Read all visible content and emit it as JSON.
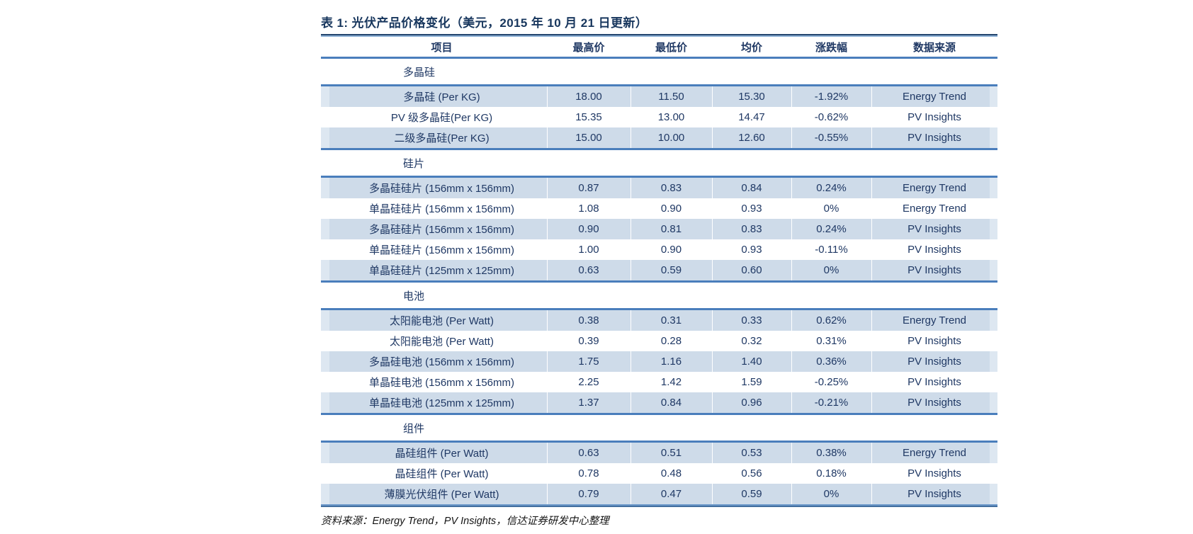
{
  "title": "表 1:  光伏产品价格变化（美元，2015 年 10 月 21 日更新）",
  "footer": "资料来源：Energy Trend，PV Insights，信达证券研发中心整理",
  "colors": {
    "text_navy": "#1f3864",
    "title_navy": "#17365d",
    "rule_blue": "#4a7ebc",
    "row_shade": "#cedbe9",
    "row_shade_cap": "#dde7f1"
  },
  "table": {
    "columns": [
      {
        "key": "item",
        "label": "项目"
      },
      {
        "key": "high",
        "label": "最高价"
      },
      {
        "key": "low",
        "label": "最低价"
      },
      {
        "key": "avg",
        "label": "均价"
      },
      {
        "key": "change",
        "label": "涨跌幅"
      },
      {
        "key": "source",
        "label": "数据来源"
      }
    ],
    "sections": [
      {
        "id": "polysilicon",
        "name": "多晶硅",
        "rows": [
          {
            "item": "多晶硅 (Per KG)",
            "high": "18.00",
            "low": "11.50",
            "avg": "15.30",
            "change": "-1.92%",
            "source": "Energy Trend"
          },
          {
            "item": "PV 级多晶硅(Per KG)",
            "high": "15.35",
            "low": "13.00",
            "avg": "14.47",
            "change": "-0.62%",
            "source": "PV Insights"
          },
          {
            "item": "二级多晶硅(Per KG)",
            "high": "15.00",
            "low": "10.00",
            "avg": "12.60",
            "change": "-0.55%",
            "source": "PV Insights"
          }
        ]
      },
      {
        "id": "wafer",
        "name": "硅片",
        "rows": [
          {
            "item": "多晶硅硅片 (156mm x 156mm)",
            "high": "0.87",
            "low": "0.83",
            "avg": "0.84",
            "change": "0.24%",
            "source": "Energy Trend"
          },
          {
            "item": "单晶硅硅片 (156mm x 156mm)",
            "high": "1.08",
            "low": "0.90",
            "avg": "0.93",
            "change": "0%",
            "source": "Energy Trend"
          },
          {
            "item": "多晶硅硅片 (156mm x 156mm)",
            "high": "0.90",
            "low": "0.81",
            "avg": "0.83",
            "change": "0.24%",
            "source": "PV Insights"
          },
          {
            "item": "单晶硅硅片 (156mm x 156mm)",
            "high": "1.00",
            "low": "0.90",
            "avg": "0.93",
            "change": "-0.11%",
            "source": "PV Insights"
          },
          {
            "item": "单晶硅硅片 (125mm x 125mm)",
            "high": "0.63",
            "low": "0.59",
            "avg": "0.60",
            "change": "0%",
            "source": "PV Insights"
          }
        ]
      },
      {
        "id": "cell",
        "name": "电池",
        "rows": [
          {
            "item": "太阳能电池 (Per Watt)",
            "high": "0.38",
            "low": "0.31",
            "avg": "0.33",
            "change": "0.62%",
            "source": "Energy Trend"
          },
          {
            "item": "太阳能电池 (Per Watt)",
            "high": "0.39",
            "low": "0.28",
            "avg": "0.32",
            "change": "0.31%",
            "source": "PV Insights"
          },
          {
            "item": "多晶硅电池 (156mm x 156mm)",
            "high": "1.75",
            "low": "1.16",
            "avg": "1.40",
            "change": "0.36%",
            "source": "PV Insights"
          },
          {
            "item": "单晶硅电池 (156mm x 156mm)",
            "high": "2.25",
            "low": "1.42",
            "avg": "1.59",
            "change": "-0.25%",
            "source": "PV Insights"
          },
          {
            "item": "单晶硅电池 (125mm x 125mm)",
            "high": "1.37",
            "low": "0.84",
            "avg": "0.96",
            "change": "-0.21%",
            "source": "PV Insights"
          }
        ]
      },
      {
        "id": "module",
        "name": "组件",
        "rows": [
          {
            "item": "晶硅组件 (Per Watt)",
            "high": "0.63",
            "low": "0.51",
            "avg": "0.53",
            "change": "0.38%",
            "source": "Energy Trend"
          },
          {
            "item": "晶硅组件 (Per Watt)",
            "high": "0.78",
            "low": "0.48",
            "avg": "0.56",
            "change": "0.18%",
            "source": "PV Insights"
          },
          {
            "item": "薄膜光伏组件 (Per Watt)",
            "high": "0.79",
            "low": "0.47",
            "avg": "0.59",
            "change": "0%",
            "source": "PV Insights"
          }
        ]
      }
    ]
  }
}
